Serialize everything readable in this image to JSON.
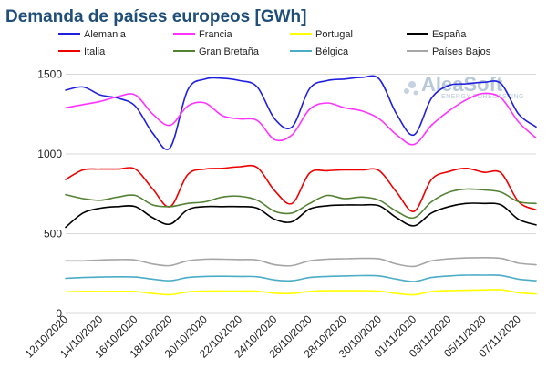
{
  "chart_data": {
    "type": "line",
    "title": "Demanda de países europeos [GWh]",
    "xlabel": "",
    "ylabel": "",
    "ylim": [
      0,
      1600
    ],
    "yticks": [
      0,
      500,
      1000,
      1500
    ],
    "grid": true,
    "legend_position": "top",
    "x": [
      "12/10/2020",
      "13/10/2020",
      "14/10/2020",
      "15/10/2020",
      "16/10/2020",
      "17/10/2020",
      "18/10/2020",
      "19/10/2020",
      "20/10/2020",
      "21/10/2020",
      "22/10/2020",
      "23/10/2020",
      "24/10/2020",
      "25/10/2020",
      "26/10/2020",
      "27/10/2020",
      "28/10/2020",
      "29/10/2020",
      "30/10/2020",
      "31/10/2020",
      "01/11/2020",
      "02/11/2020",
      "03/11/2020",
      "04/11/2020",
      "05/11/2020",
      "06/11/2020",
      "07/11/2020",
      "08/11/2020"
    ],
    "xticks": [
      "12/10/2020",
      "14/10/2020",
      "16/10/2020",
      "18/10/2020",
      "20/10/2020",
      "22/10/2020",
      "24/10/2020",
      "26/10/2020",
      "28/10/2020",
      "30/10/2020",
      "01/11/2020",
      "03/11/2020",
      "05/11/2020",
      "07/11/2020"
    ],
    "series": [
      {
        "name": "Alemania",
        "color": "#1f1fe0",
        "values": [
          1400,
          1420,
          1370,
          1350,
          1300,
          1130,
          1040,
          1400,
          1470,
          1475,
          1460,
          1420,
          1220,
          1170,
          1410,
          1460,
          1470,
          1480,
          1470,
          1250,
          1120,
          1350,
          1430,
          1440,
          1450,
          1440,
          1250,
          1170
        ]
      },
      {
        "name": "Francia",
        "color": "#ff33ff",
        "values": [
          1290,
          1310,
          1330,
          1360,
          1370,
          1250,
          1180,
          1300,
          1320,
          1240,
          1220,
          1210,
          1090,
          1120,
          1280,
          1320,
          1290,
          1270,
          1220,
          1120,
          1060,
          1180,
          1270,
          1340,
          1380,
          1350,
          1200,
          1100
        ]
      },
      {
        "name": "Portugal",
        "color": "#ffff00",
        "values": [
          135,
          138,
          138,
          138,
          137,
          125,
          118,
          135,
          140,
          140,
          140,
          139,
          127,
          125,
          138,
          142,
          142,
          142,
          140,
          125,
          117,
          137,
          143,
          145,
          147,
          148,
          130,
          122
        ]
      },
      {
        "name": "España",
        "color": "#000000",
        "values": [
          540,
          630,
          660,
          670,
          670,
          600,
          560,
          650,
          670,
          670,
          670,
          660,
          590,
          575,
          655,
          675,
          680,
          680,
          675,
          600,
          550,
          630,
          670,
          690,
          690,
          680,
          590,
          555
        ]
      },
      {
        "name": "Italia",
        "color": "#ee0000",
        "values": [
          840,
          900,
          905,
          905,
          905,
          780,
          670,
          870,
          905,
          910,
          920,
          915,
          770,
          690,
          880,
          895,
          900,
          900,
          895,
          760,
          640,
          840,
          890,
          910,
          885,
          880,
          700,
          650
        ]
      },
      {
        "name": "Gran Bretaña",
        "color": "#548235",
        "values": [
          745,
          720,
          710,
          730,
          740,
          680,
          670,
          690,
          700,
          730,
          735,
          710,
          640,
          630,
          690,
          740,
          720,
          730,
          710,
          640,
          600,
          700,
          760,
          780,
          775,
          760,
          700,
          690
        ]
      },
      {
        "name": "Bélgica",
        "color": "#4bacc6",
        "values": [
          220,
          225,
          228,
          230,
          228,
          215,
          205,
          225,
          232,
          233,
          232,
          230,
          210,
          205,
          225,
          232,
          235,
          237,
          235,
          215,
          200,
          225,
          235,
          240,
          240,
          238,
          215,
          205
        ]
      },
      {
        "name": "Países Bajos",
        "color": "#a6a6a6",
        "values": [
          330,
          330,
          335,
          338,
          335,
          310,
          300,
          330,
          340,
          340,
          338,
          335,
          305,
          300,
          330,
          340,
          343,
          345,
          342,
          310,
          295,
          330,
          342,
          348,
          350,
          345,
          315,
          305
        ]
      }
    ]
  },
  "watermark": {
    "brand": "AleaSoft",
    "tagline": "ENERGY FORECASTING"
  }
}
